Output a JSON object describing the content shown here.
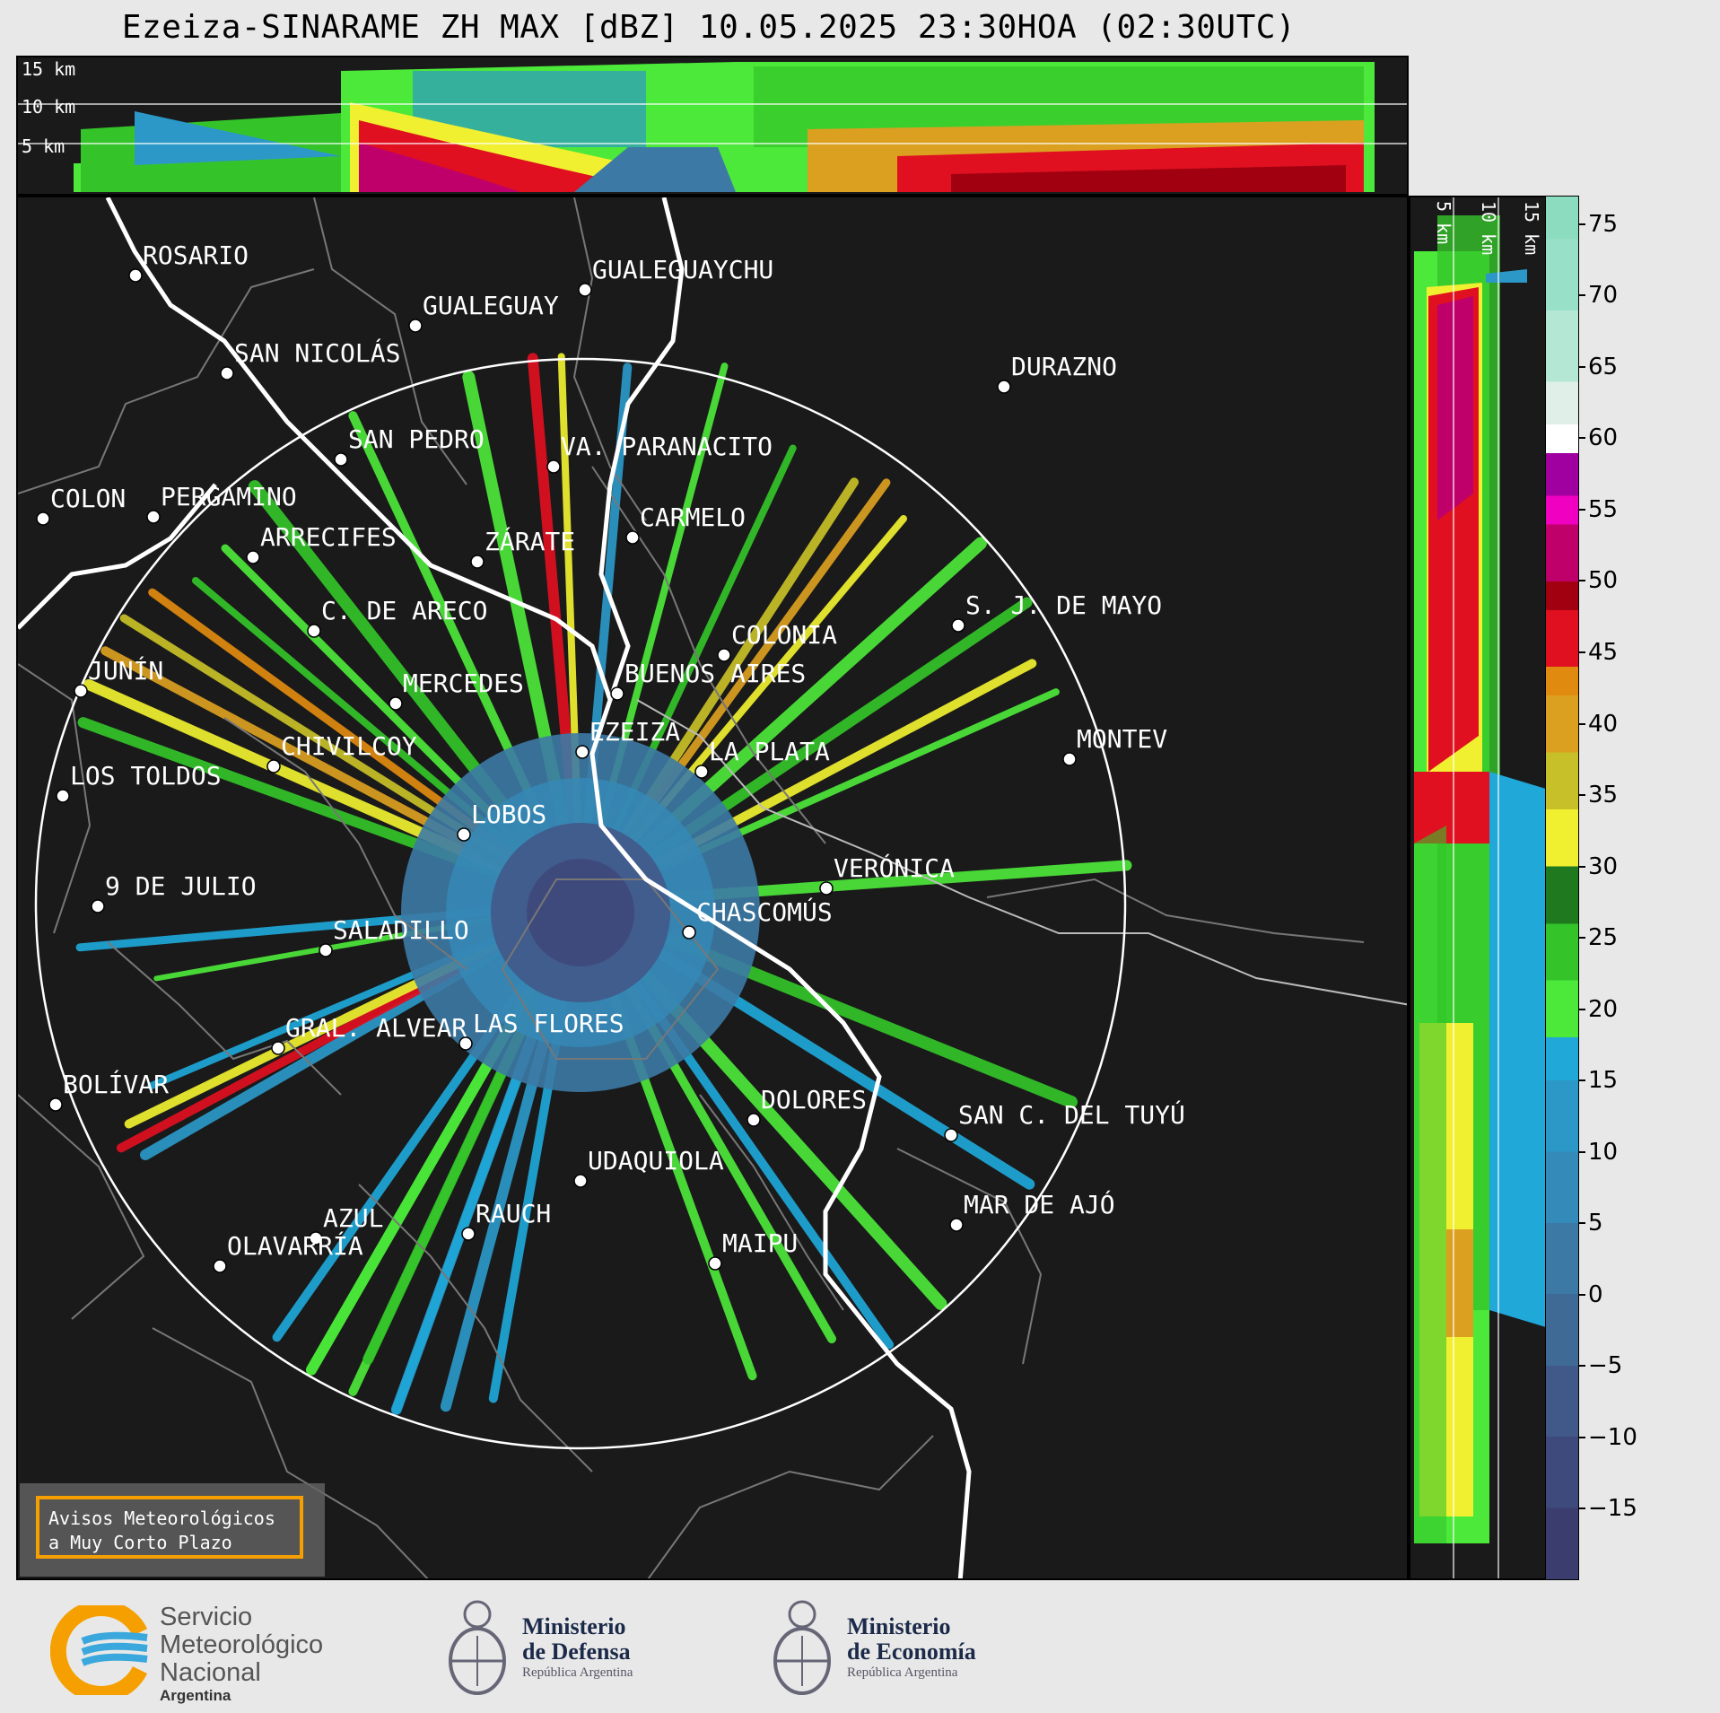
{
  "title": "Ezeiza-SINARAME ZH MAX [dBZ] 10.05.2025 23:30HOA (02:30UTC)",
  "top_panel": {
    "height_labels": [
      "15 km",
      "10 km",
      "5 km"
    ]
  },
  "side_panel": {
    "height_labels": [
      "5 km",
      "10 km",
      "15 km"
    ]
  },
  "colorbar": {
    "unit": "dBZ",
    "min": -20,
    "max": 77,
    "ticks": [
      "75",
      "70",
      "65",
      "60",
      "55",
      "50",
      "45",
      "40",
      "35",
      "30",
      "25",
      "20",
      "15",
      "10",
      "5",
      "0",
      "−5",
      "−10",
      "−15"
    ],
    "stops": [
      {
        "from": -20,
        "color": "#3a3d6e"
      },
      {
        "from": -15,
        "color": "#3f4a7c"
      },
      {
        "from": -10,
        "color": "#415989"
      },
      {
        "from": -5,
        "color": "#3f6a96"
      },
      {
        "from": 0,
        "color": "#3c7aa5"
      },
      {
        "from": 5,
        "color": "#348ab8"
      },
      {
        "from": 10,
        "color": "#2b98c8"
      },
      {
        "from": 15,
        "color": "#1fa8d8"
      },
      {
        "from": 18,
        "color": "#4ce83a"
      },
      {
        "from": 22,
        "color": "#34c42a"
      },
      {
        "from": 26,
        "color": "#1f7a1f"
      },
      {
        "from": 30,
        "color": "#f0f030"
      },
      {
        "from": 34,
        "color": "#c8c028"
      },
      {
        "from": 38,
        "color": "#dca020"
      },
      {
        "from": 42,
        "color": "#e08a10"
      },
      {
        "from": 44,
        "color": "#e01020"
      },
      {
        "from": 48,
        "color": "#a00010"
      },
      {
        "from": 50,
        "color": "#c0006a"
      },
      {
        "from": 54,
        "color": "#f000c0"
      },
      {
        "from": 56,
        "color": "#a000a0"
      },
      {
        "from": 59,
        "color": "#ffffff"
      },
      {
        "from": 61,
        "color": "#e0f0e8"
      },
      {
        "from": 64,
        "color": "#b4e8d4"
      },
      {
        "from": 69,
        "color": "#98e0c8"
      },
      {
        "from": 74,
        "color": "#8cdcc0"
      }
    ]
  },
  "map": {
    "radar_site": "EZEIZA",
    "cities": [
      "ROSARIO",
      "GUALEGUAYCHU",
      "GUALEGUAY",
      "SAN NICOLÁS",
      "DURAZNO",
      "SAN PEDRO",
      "VA. PARANACITO",
      "COLON",
      "PERGAMINO",
      "CARMELO",
      "ARRECIFES",
      "ZÁRATE",
      "S. J. DE MAYO",
      "C. DE ARECO",
      "COLONIA",
      "BUENOS AIRES",
      "JUNÍN",
      "MERCEDES",
      "EZEIZA",
      "CHIVILCOY",
      "LA PLATA",
      "MONTEV",
      "LOS TOLDOS",
      "LOBOS",
      "VERÓNICA",
      "9 DE JULIO",
      "CHASCOMÚS",
      "SALADILLO",
      "GRAL. ALVEAR",
      "LAS FLORES",
      "BOLÍVAR",
      "DOLORES",
      "SAN C. DEL TUYÚ",
      "UDAQUIOLA",
      "MAR DE AJÓ",
      "AZUL",
      "RAUCH",
      "OLAVARRÍA",
      "MAIPU"
    ]
  },
  "warning_box": {
    "line1": "Avisos Meteorológicos",
    "line2": "a Muy Corto Plazo"
  },
  "footer": {
    "smn": {
      "line1": "Servicio",
      "line2": "Meteorológico",
      "line3": "Nacional",
      "line4": "Argentina"
    },
    "defensa": {
      "line1": "Ministerio",
      "line2": "de Defensa",
      "line3": "República Argentina"
    },
    "economia": {
      "line1": "Ministerio",
      "line2": "de Economía",
      "line3": "República Argentina"
    }
  }
}
